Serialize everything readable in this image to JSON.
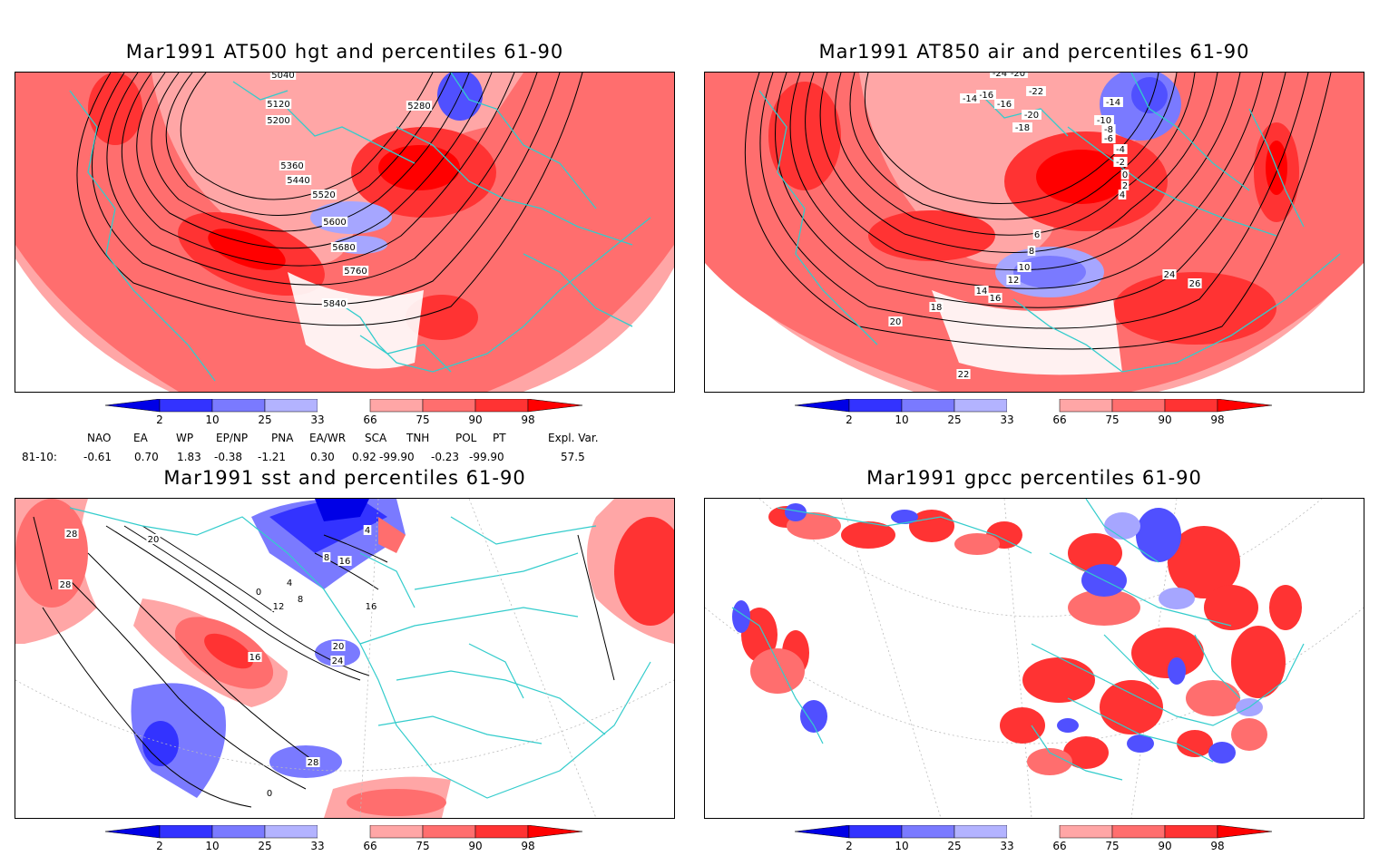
{
  "panels": [
    {
      "id": "hgt",
      "title": "Mar1991 AT500 hgt and percentiles 61-90",
      "contour_labels": [
        "5040",
        "5120",
        "5200",
        "5280",
        "5360",
        "5440",
        "5520",
        "5600",
        "5680",
        "5760",
        "5840"
      ]
    },
    {
      "id": "air",
      "title": "Mar1991 AT850 air and percentiles 61-90",
      "contour_labels": [
        "-24",
        "-20",
        "-16",
        "-14",
        "-22",
        "-16",
        "-20",
        "-18",
        "-14",
        "-10",
        "-8",
        "-6",
        "-4",
        "-2",
        "0",
        "2",
        "4",
        "6",
        "8",
        "10",
        "12",
        "14",
        "16",
        "18",
        "20",
        "22",
        "24",
        "26"
      ]
    },
    {
      "id": "sst",
      "title": "Mar1991 sst and percentiles 61-90",
      "contour_labels": [
        "28",
        "28",
        "20",
        "0",
        "4",
        "8",
        "12",
        "16",
        "20",
        "24",
        "28",
        "0",
        "4",
        "8",
        "16",
        "16"
      ]
    },
    {
      "id": "gpcc",
      "title": "Mar1991 gpcc percentiles 61-90",
      "contour_labels": []
    }
  ],
  "colorbar": {
    "ticks": [
      "2",
      "10",
      "25",
      "33",
      "66",
      "75",
      "90",
      "98"
    ],
    "colors": [
      "#0000e6",
      "#3333ff",
      "#7a7aff",
      "#b3b3ff",
      "#ffffff",
      "#ffa6a6",
      "#ff6e6e",
      "#ff3333",
      "#ff0000"
    ]
  },
  "indices": {
    "row_label": "81-10:",
    "headers": [
      "NAO",
      "EA",
      "WP",
      "EP/NP",
      "PNA",
      "EA/WR",
      "SCA",
      "TNH",
      "POL",
      "PT",
      "Expl. Var."
    ],
    "values": [
      "-0.61",
      "0.70",
      "1.83",
      "-0.38",
      "-1.21",
      "0.30",
      "0.92",
      "-99.90",
      "-0.23",
      "-99.90",
      "57.5"
    ]
  },
  "legend_colors": {
    "strong_red": "#ff2020",
    "red": "#ff6e6e",
    "pink": "#ffa6a6",
    "light_blue": "#a6a6ff",
    "blue": "#5050ff",
    "deep_blue": "#0000e6",
    "coast": "#33cccc"
  }
}
